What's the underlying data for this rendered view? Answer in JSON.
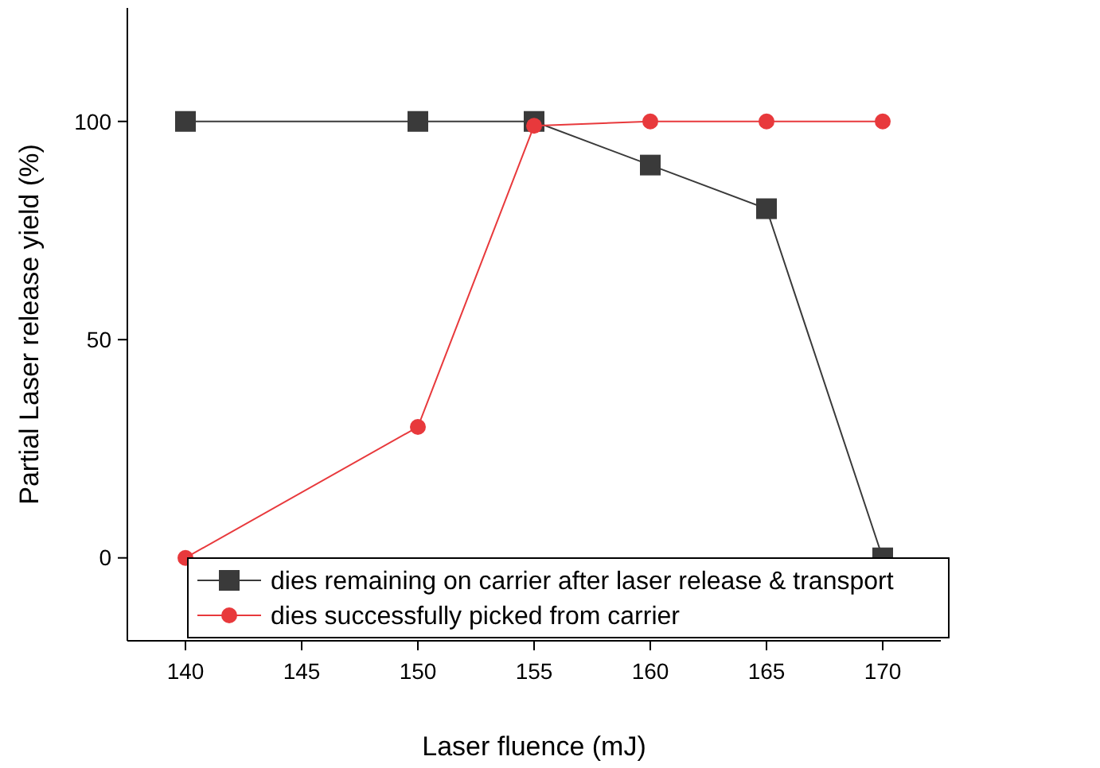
{
  "chart_data": {
    "type": "line",
    "xlabel": "Laser fluence (mJ)",
    "ylabel": "Partial Laser release yield (%)",
    "x": [
      140,
      150,
      155,
      160,
      165,
      170
    ],
    "series": [
      {
        "name": "dies remaining on carrier after laser release & transport",
        "color": "#3a3a3a",
        "marker": "square",
        "values": [
          100,
          100,
          100,
          90,
          80,
          0
        ]
      },
      {
        "name": "dies successfully picked from carrier",
        "color": "#e8393c",
        "marker": "circle",
        "values": [
          0,
          30,
          99,
          100,
          100,
          100
        ]
      }
    ],
    "xlim": [
      137.5,
      172.5
    ],
    "xticks": [
      140,
      145,
      150,
      155,
      160,
      165,
      170
    ],
    "ylim": [
      -19,
      126
    ],
    "yticks": [
      0,
      50,
      100
    ],
    "grid": false,
    "legend": "bottom",
    "line_style": "solid"
  }
}
